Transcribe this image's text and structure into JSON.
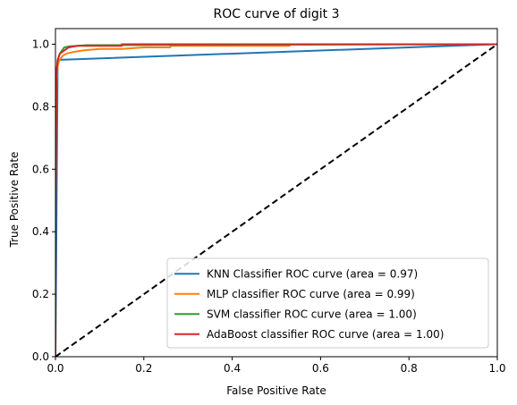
{
  "chart_data": {
    "type": "line",
    "title": "ROC curve of digit 3",
    "xlabel": "False Positive Rate",
    "ylabel": "True Positive Rate",
    "xlim": [
      0.0,
      1.0
    ],
    "ylim": [
      0.0,
      1.05
    ],
    "x_ticks": [
      "0.0",
      "0.2",
      "0.4",
      "0.6",
      "0.8",
      "1.0"
    ],
    "y_ticks": [
      "0.0",
      "0.2",
      "0.4",
      "0.6",
      "0.8",
      "1.0"
    ],
    "grid": false,
    "legend_position": "lower-right",
    "series": [
      {
        "name": "KNN Classifier ROC curve (area = 0.97)",
        "color": "#1f77b4",
        "x": [
          0.0,
          0.0,
          0.005,
          1.0
        ],
        "y": [
          0.0,
          0.0,
          0.95,
          1.0
        ]
      },
      {
        "name": "MLP classifier ROC curve (area = 0.99)",
        "color": "#ff7f0e",
        "x": [
          0.0,
          0.0,
          0.002,
          0.005,
          0.008,
          0.012,
          0.018,
          0.025,
          0.04,
          0.06,
          0.1,
          0.15,
          0.2,
          0.26,
          0.26,
          0.53,
          0.53,
          1.0
        ],
        "y": [
          0.0,
          0.5,
          0.88,
          0.93,
          0.945,
          0.955,
          0.965,
          0.97,
          0.975,
          0.98,
          0.985,
          0.985,
          0.99,
          0.99,
          0.995,
          0.995,
          1.0,
          1.0
        ]
      },
      {
        "name": "SVM classifier ROC curve (area = 1.00)",
        "color": "#2ca02c",
        "x": [
          0.0,
          0.0,
          0.002,
          0.005,
          0.01,
          0.015,
          0.02,
          0.03,
          0.05,
          0.07,
          1.0
        ],
        "y": [
          0.0,
          0.6,
          0.9,
          0.95,
          0.97,
          0.98,
          0.99,
          0.993,
          0.995,
          0.997,
          1.0
        ]
      },
      {
        "name": "AdaBoost classifier ROC curve (area = 1.00)",
        "color": "#d62728",
        "x": [
          0.0,
          0.0,
          0.002,
          0.005,
          0.01,
          0.02,
          0.03,
          0.05,
          0.15,
          0.15,
          1.0
        ],
        "y": [
          0.0,
          0.5,
          0.9,
          0.95,
          0.97,
          0.98,
          0.99,
          0.995,
          0.995,
          1.0,
          1.0
        ]
      },
      {
        "name": "",
        "color": "#000000",
        "dashed": true,
        "x": [
          0.0,
          1.0
        ],
        "y": [
          0.0,
          1.0
        ]
      }
    ]
  }
}
